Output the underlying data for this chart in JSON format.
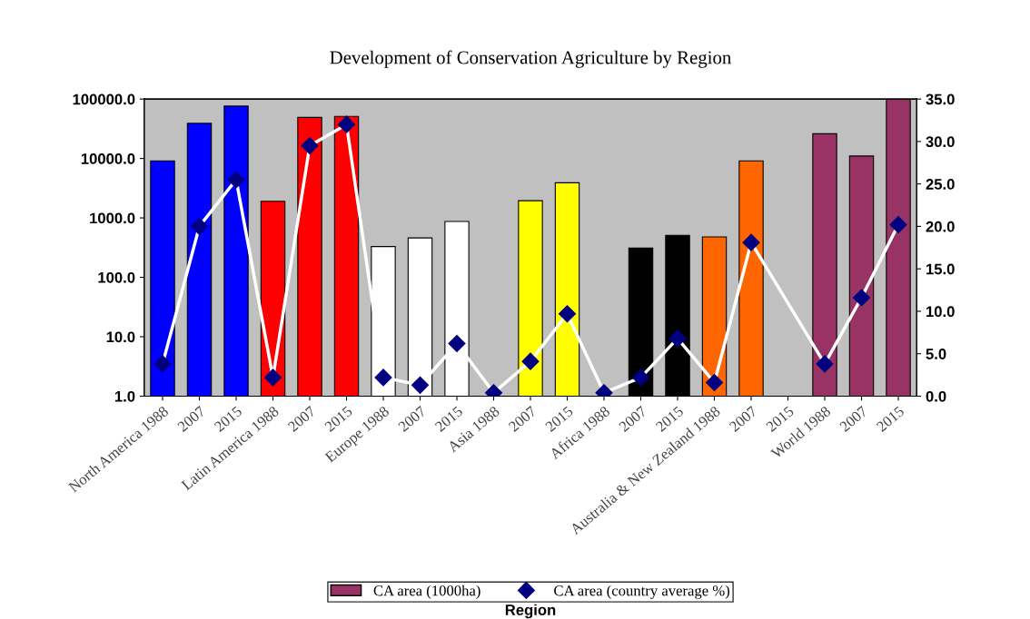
{
  "chart_data": {
    "type": "bar",
    "title": "Development of Conservation Agriculture by Region",
    "xlabel": "Region",
    "categories": [
      "North America 1988",
      "2007",
      "2015",
      "Latin America 1988",
      "2007",
      "2015",
      "Europe 1988",
      "2007",
      "2015",
      "Asia 1988",
      "2007",
      "2015",
      "Africa 1988",
      "2007",
      "2015",
      "Australia & New Zealand 1988",
      "2007",
      "2015",
      "World 1988",
      "2007",
      "2015"
    ],
    "series": [
      {
        "name": "CA area (1000ha)",
        "colors": [
          "#0000ff",
          "#0000ff",
          "#0000ff",
          "#ff0000",
          "#ff0000",
          "#ff0000",
          "#ffffff",
          "#ffffff",
          "#ffffff",
          "#ffff00",
          "#ffff00",
          "#ffff00",
          "#000000",
          "#000000",
          "#000000",
          "#ff6600",
          "#ff6600",
          "#ff6600",
          "#993366",
          "#993366",
          "#993366"
        ],
        "values": [
          9100,
          39000,
          76000,
          1900,
          49000,
          51000,
          330,
          460,
          870,
          null,
          1950,
          3900,
          null,
          310,
          510,
          480,
          9100,
          null,
          26000,
          11000,
          100000
        ]
      },
      {
        "name": "CA area (country average %)",
        "type": "line",
        "axis": "y2",
        "color": "#000080",
        "marker": "diamond",
        "values": [
          3.8,
          20.0,
          25.5,
          2.2,
          29.5,
          32.0,
          2.2,
          1.3,
          6.2,
          0.4,
          4.1,
          9.7,
          0.4,
          2.2,
          6.8,
          1.6,
          18.1,
          null,
          3.8,
          11.6,
          20.2
        ]
      }
    ],
    "log": true,
    "ylim": [
      1,
      100000
    ],
    "yticks": [
      {
        "value": 1,
        "label": "1.0"
      },
      {
        "value": 10,
        "label": "10.0"
      },
      {
        "value": 100,
        "label": "100.0"
      },
      {
        "value": 1000,
        "label": "1000.0"
      },
      {
        "value": 10000,
        "label": "10000.0"
      },
      {
        "value": 100000,
        "label": "100000.0"
      }
    ],
    "y2lim": [
      0,
      35
    ],
    "y2ticks": [
      {
        "value": 0,
        "label": "0.0"
      },
      {
        "value": 5,
        "label": "5.0"
      },
      {
        "value": 10,
        "label": "10.0"
      },
      {
        "value": 15,
        "label": "15.0"
      },
      {
        "value": 20,
        "label": "20.0"
      },
      {
        "value": 25,
        "label": "25.0"
      },
      {
        "value": 30,
        "label": "30.0"
      },
      {
        "value": 35,
        "label": "35.0"
      }
    ],
    "grid": false,
    "legend": "bottom"
  }
}
